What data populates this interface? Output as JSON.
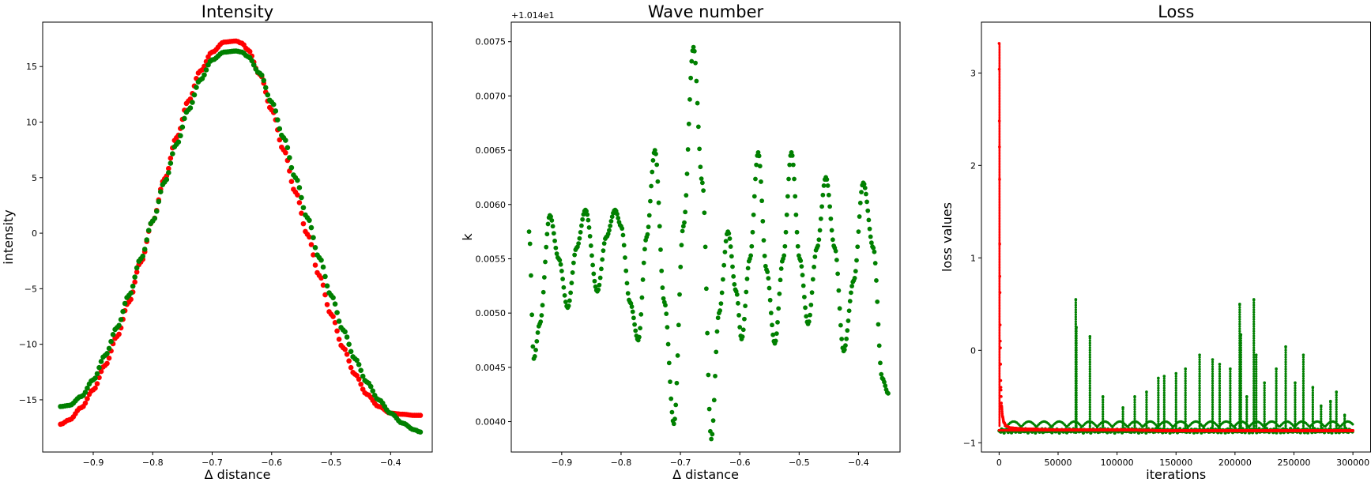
{
  "chart_data": [
    {
      "type": "scatter",
      "title": "Intensity",
      "xlabel": "Δ distance",
      "ylabel": "intensity",
      "xlim": [
        -0.985,
        -0.33
      ],
      "ylim": [
        -19.7,
        19.0
      ],
      "xticks": [
        -0.9,
        -0.8,
        -0.7,
        -0.6,
        -0.5,
        -0.4
      ],
      "xtick_labels": [
        "−0.9",
        "−0.8",
        "−0.7",
        "−0.6",
        "−0.5",
        "−0.4"
      ],
      "yticks": [
        -15,
        -10,
        -5,
        0,
        5,
        10,
        15
      ],
      "ytick_labels": [
        "−15",
        "−10",
        "−5",
        "0",
        "5",
        "10",
        "15"
      ],
      "grid": false,
      "series": [
        {
          "color": "#ff0000",
          "x": [
            -0.955,
            -0.94,
            -0.92,
            -0.9,
            -0.88,
            -0.86,
            -0.84,
            -0.82,
            -0.8,
            -0.78,
            -0.76,
            -0.74,
            -0.72,
            -0.7,
            -0.68,
            -0.66,
            -0.65,
            -0.64,
            -0.62,
            -0.6,
            -0.58,
            -0.56,
            -0.54,
            -0.52,
            -0.5,
            -0.48,
            -0.46,
            -0.44,
            -0.42,
            -0.4,
            -0.38,
            -0.36,
            -0.35
          ],
          "y": [
            -17.2,
            -16.8,
            -15.7,
            -14.1,
            -11.9,
            -9.3,
            -6.2,
            -2.6,
            1.1,
            4.9,
            8.6,
            11.9,
            14.6,
            16.3,
            17.2,
            17.3,
            17.1,
            16.5,
            14.3,
            11.1,
            7.5,
            3.7,
            -0.1,
            -3.8,
            -7.3,
            -10.3,
            -12.7,
            -14.5,
            -15.6,
            -16.2,
            -16.3,
            -16.4,
            -16.4
          ]
        },
        {
          "color": "#008000",
          "x": [
            -0.955,
            -0.94,
            -0.92,
            -0.9,
            -0.88,
            -0.86,
            -0.84,
            -0.82,
            -0.8,
            -0.78,
            -0.76,
            -0.74,
            -0.72,
            -0.7,
            -0.68,
            -0.66,
            -0.65,
            -0.64,
            -0.62,
            -0.6,
            -0.58,
            -0.56,
            -0.54,
            -0.52,
            -0.5,
            -0.48,
            -0.46,
            -0.44,
            -0.42,
            -0.4,
            -0.38,
            -0.36,
            -0.35
          ],
          "y": [
            -15.6,
            -15.5,
            -14.7,
            -13.2,
            -11.0,
            -8.5,
            -5.6,
            -2.3,
            1.1,
            4.6,
            8.0,
            11.1,
            13.8,
            15.6,
            16.3,
            16.4,
            16.3,
            15.9,
            14.4,
            11.8,
            8.6,
            5.0,
            1.4,
            -2.2,
            -5.6,
            -8.7,
            -11.3,
            -13.4,
            -15.0,
            -16.2,
            -17.1,
            -17.7,
            -17.9
          ]
        }
      ]
    },
    {
      "type": "scatter",
      "title": "Wave number",
      "xlabel": "Δ distance",
      "ylabel": "k",
      "offset_text": "+1.014e1",
      "xlim": [
        -0.985,
        -0.33
      ],
      "ylim": [
        0.00372,
        0.00768
      ],
      "xticks": [
        -0.9,
        -0.8,
        -0.7,
        -0.6,
        -0.5,
        -0.4
      ],
      "xtick_labels": [
        "−0.9",
        "−0.8",
        "−0.7",
        "−0.6",
        "−0.5",
        "−0.4"
      ],
      "yticks": [
        0.004,
        0.0045,
        0.005,
        0.0055,
        0.006,
        0.0065,
        0.007,
        0.0075
      ],
      "ytick_labels": [
        "0.0040",
        "0.0045",
        "0.0050",
        "0.0055",
        "0.0060",
        "0.0065",
        "0.0070",
        "0.0075"
      ],
      "grid": false,
      "series": [
        {
          "color": "#008000",
          "x": [
            -0.955,
            -0.947,
            -0.937,
            -0.92,
            -0.905,
            -0.89,
            -0.875,
            -0.86,
            -0.84,
            -0.825,
            -0.81,
            -0.8,
            -0.785,
            -0.771,
            -0.757,
            -0.743,
            -0.727,
            -0.711,
            -0.695,
            -0.678,
            -0.663,
            -0.648,
            -0.635,
            -0.62,
            -0.606,
            -0.597,
            -0.583,
            -0.569,
            -0.555,
            -0.541,
            -0.527,
            -0.513,
            -0.499,
            -0.485,
            -0.47,
            -0.455,
            -0.44,
            -0.425,
            -0.408,
            -0.392,
            -0.375,
            -0.36,
            -0.35
          ],
          "y": [
            0.00575,
            0.00458,
            0.0049,
            0.0059,
            0.0055,
            0.00505,
            0.0056,
            0.00595,
            0.0052,
            0.0057,
            0.00595,
            0.0058,
            0.0051,
            0.00475,
            0.0057,
            0.0065,
            0.0051,
            0.00398,
            0.0058,
            0.00745,
            0.0062,
            0.00384,
            0.005,
            0.00575,
            0.0052,
            0.00476,
            0.0055,
            0.00648,
            0.0054,
            0.00472,
            0.0055,
            0.00648,
            0.0055,
            0.0049,
            0.0056,
            0.00625,
            0.0056,
            0.00465,
            0.0053,
            0.0062,
            0.0056,
            0.0044,
            0.00426
          ]
        }
      ]
    },
    {
      "type": "scatter",
      "title": "Loss",
      "xlabel": "iterations",
      "ylabel": "loss values",
      "xlim": [
        -15000,
        315000
      ],
      "ylim": [
        -1.1,
        3.55
      ],
      "xticks": [
        0,
        50000,
        100000,
        150000,
        200000,
        250000,
        300000
      ],
      "xtick_labels": [
        "0",
        "50000",
        "100000",
        "150000",
        "200000",
        "250000",
        "300000"
      ],
      "yticks": [
        -1,
        0,
        1,
        2,
        3
      ],
      "ytick_labels": [
        "−1",
        "0",
        "1",
        "2",
        "3"
      ],
      "grid": false,
      "series": [
        {
          "color": "#ff0000",
          "x": [
            0,
            300,
            600,
            1000,
            1500,
            2000,
            3000,
            4000,
            6000,
            10000,
            20000,
            50000,
            100000,
            150000,
            200000,
            250000,
            300000
          ],
          "y": [
            3.32,
            2.2,
            0.8,
            0.1,
            -0.4,
            -0.6,
            -0.72,
            -0.78,
            -0.82,
            -0.84,
            -0.85,
            -0.86,
            -0.86,
            -0.87,
            -0.87,
            -0.87,
            -0.87
          ]
        },
        {
          "color": "#008000",
          "baseline": -0.87,
          "spikes": [
            {
              "x": 65000,
              "y": 0.55
            },
            {
              "x": 65500,
              "y": 0.25
            },
            {
              "x": 77000,
              "y": 0.15
            },
            {
              "x": 88000,
              "y": -0.5
            },
            {
              "x": 105000,
              "y": -0.62
            },
            {
              "x": 115000,
              "y": -0.5
            },
            {
              "x": 125000,
              "y": -0.45
            },
            {
              "x": 135000,
              "y": -0.3
            },
            {
              "x": 140000,
              "y": -0.28
            },
            {
              "x": 150000,
              "y": -0.25
            },
            {
              "x": 158000,
              "y": -0.2
            },
            {
              "x": 170000,
              "y": -0.05
            },
            {
              "x": 181000,
              "y": -0.1
            },
            {
              "x": 187000,
              "y": -0.15
            },
            {
              "x": 196000,
              "y": -0.2
            },
            {
              "x": 204000,
              "y": 0.5
            },
            {
              "x": 205000,
              "y": 0.17
            },
            {
              "x": 210000,
              "y": -0.5
            },
            {
              "x": 216000,
              "y": 0.55
            },
            {
              "x": 218000,
              "y": -0.05
            },
            {
              "x": 225000,
              "y": -0.35
            },
            {
              "x": 235000,
              "y": -0.2
            },
            {
              "x": 243000,
              "y": 0.04
            },
            {
              "x": 251000,
              "y": -0.35
            },
            {
              "x": 258000,
              "y": -0.05
            },
            {
              "x": 266000,
              "y": -0.4
            },
            {
              "x": 273000,
              "y": -0.6
            },
            {
              "x": 281000,
              "y": -0.55
            },
            {
              "x": 286000,
              "y": -0.45
            },
            {
              "x": 293000,
              "y": -0.7
            }
          ]
        }
      ]
    }
  ]
}
